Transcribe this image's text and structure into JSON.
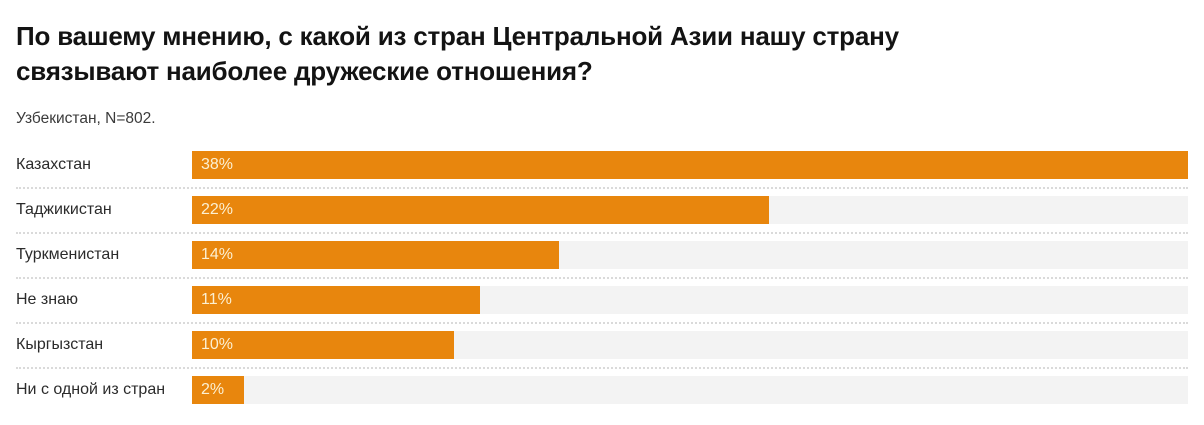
{
  "chart_data": {
    "type": "bar",
    "orientation": "horizontal",
    "title": "По вашему мнению, с какой из стран Центральной Азии нашу страну связывают наиболее дружеские отношения?",
    "title_lines": [
      "По вашему мнению, с какой из стран Центральной Азии нашу страну",
      "связывают наиболее дружеские отношения?"
    ],
    "subtitle": "Узбекистан, N=802.",
    "categories": [
      "Казахстан",
      "Таджикистан",
      "Туркменистан",
      "Не знаю",
      "Кыргызстан",
      "Ни с одной из стран"
    ],
    "values": [
      38,
      22,
      14,
      11,
      10,
      2
    ],
    "value_labels": [
      "38%",
      "22%",
      "14%",
      "11%",
      "10%",
      "2%"
    ],
    "value_suffix": "%",
    "xlim": [
      0,
      38
    ],
    "grid": false,
    "legend": false,
    "colors": {
      "bar": "#e8860d",
      "track": "#f3f3f3",
      "value_text": "#fcf0d2",
      "title_text": "#131313",
      "label_text": "#2b2b2b",
      "separator": "#dadada",
      "background": "#ffffff"
    }
  }
}
